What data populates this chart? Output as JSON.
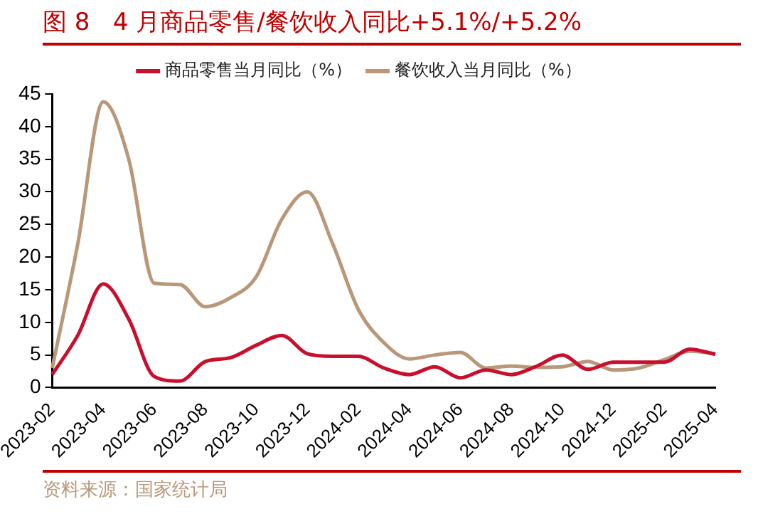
{
  "chart_data": {
    "type": "line",
    "title": "图 8   4 月商品零售/餐饮收入同比+5.1%/+5.2%",
    "annotations": [
      "资料来源：国家统计局"
    ],
    "categories": [
      "2023-02",
      null,
      "2023-04",
      null,
      "2023-06",
      null,
      "2023-08",
      null,
      "2023-10",
      null,
      "2023-12",
      null,
      "2024-02",
      null,
      "2024-04",
      null,
      "2024-06",
      null,
      "2024-08",
      null,
      "2024-10",
      null,
      "2024-12",
      null,
      "2025-02",
      null,
      "2025-04"
    ],
    "series": [
      {
        "name": "商品零售当月同比（%）",
        "color": "#c8102e",
        "values": [
          2,
          8,
          15.9,
          10.5,
          1.7,
          1.0,
          4,
          4.6,
          6.5,
          8,
          5.2,
          4.8,
          4.8,
          3,
          2,
          3.2,
          1.5,
          2.7,
          2,
          3.3,
          5,
          2.8,
          3.9,
          3.9,
          3.9,
          5.9,
          5.1
        ]
      },
      {
        "name": "餐饮收入当月同比（%）",
        "color": "#b9987a",
        "values": [
          3,
          22,
          43.8,
          35,
          16,
          15.8,
          12.4,
          13.8,
          17,
          25.8,
          30,
          22,
          12,
          6.9,
          4.4,
          5,
          5.4,
          3,
          3.3,
          3.1,
          3.2,
          4,
          2.7,
          3,
          4.3,
          5.6,
          5.2
        ]
      }
    ],
    "ylim": [
      0,
      45
    ],
    "yticks": [
      0,
      5,
      10,
      15,
      20,
      25,
      30,
      35,
      40,
      45
    ],
    "grid": false,
    "legend": "top",
    "marker": "none",
    "line_style": "solid"
  }
}
